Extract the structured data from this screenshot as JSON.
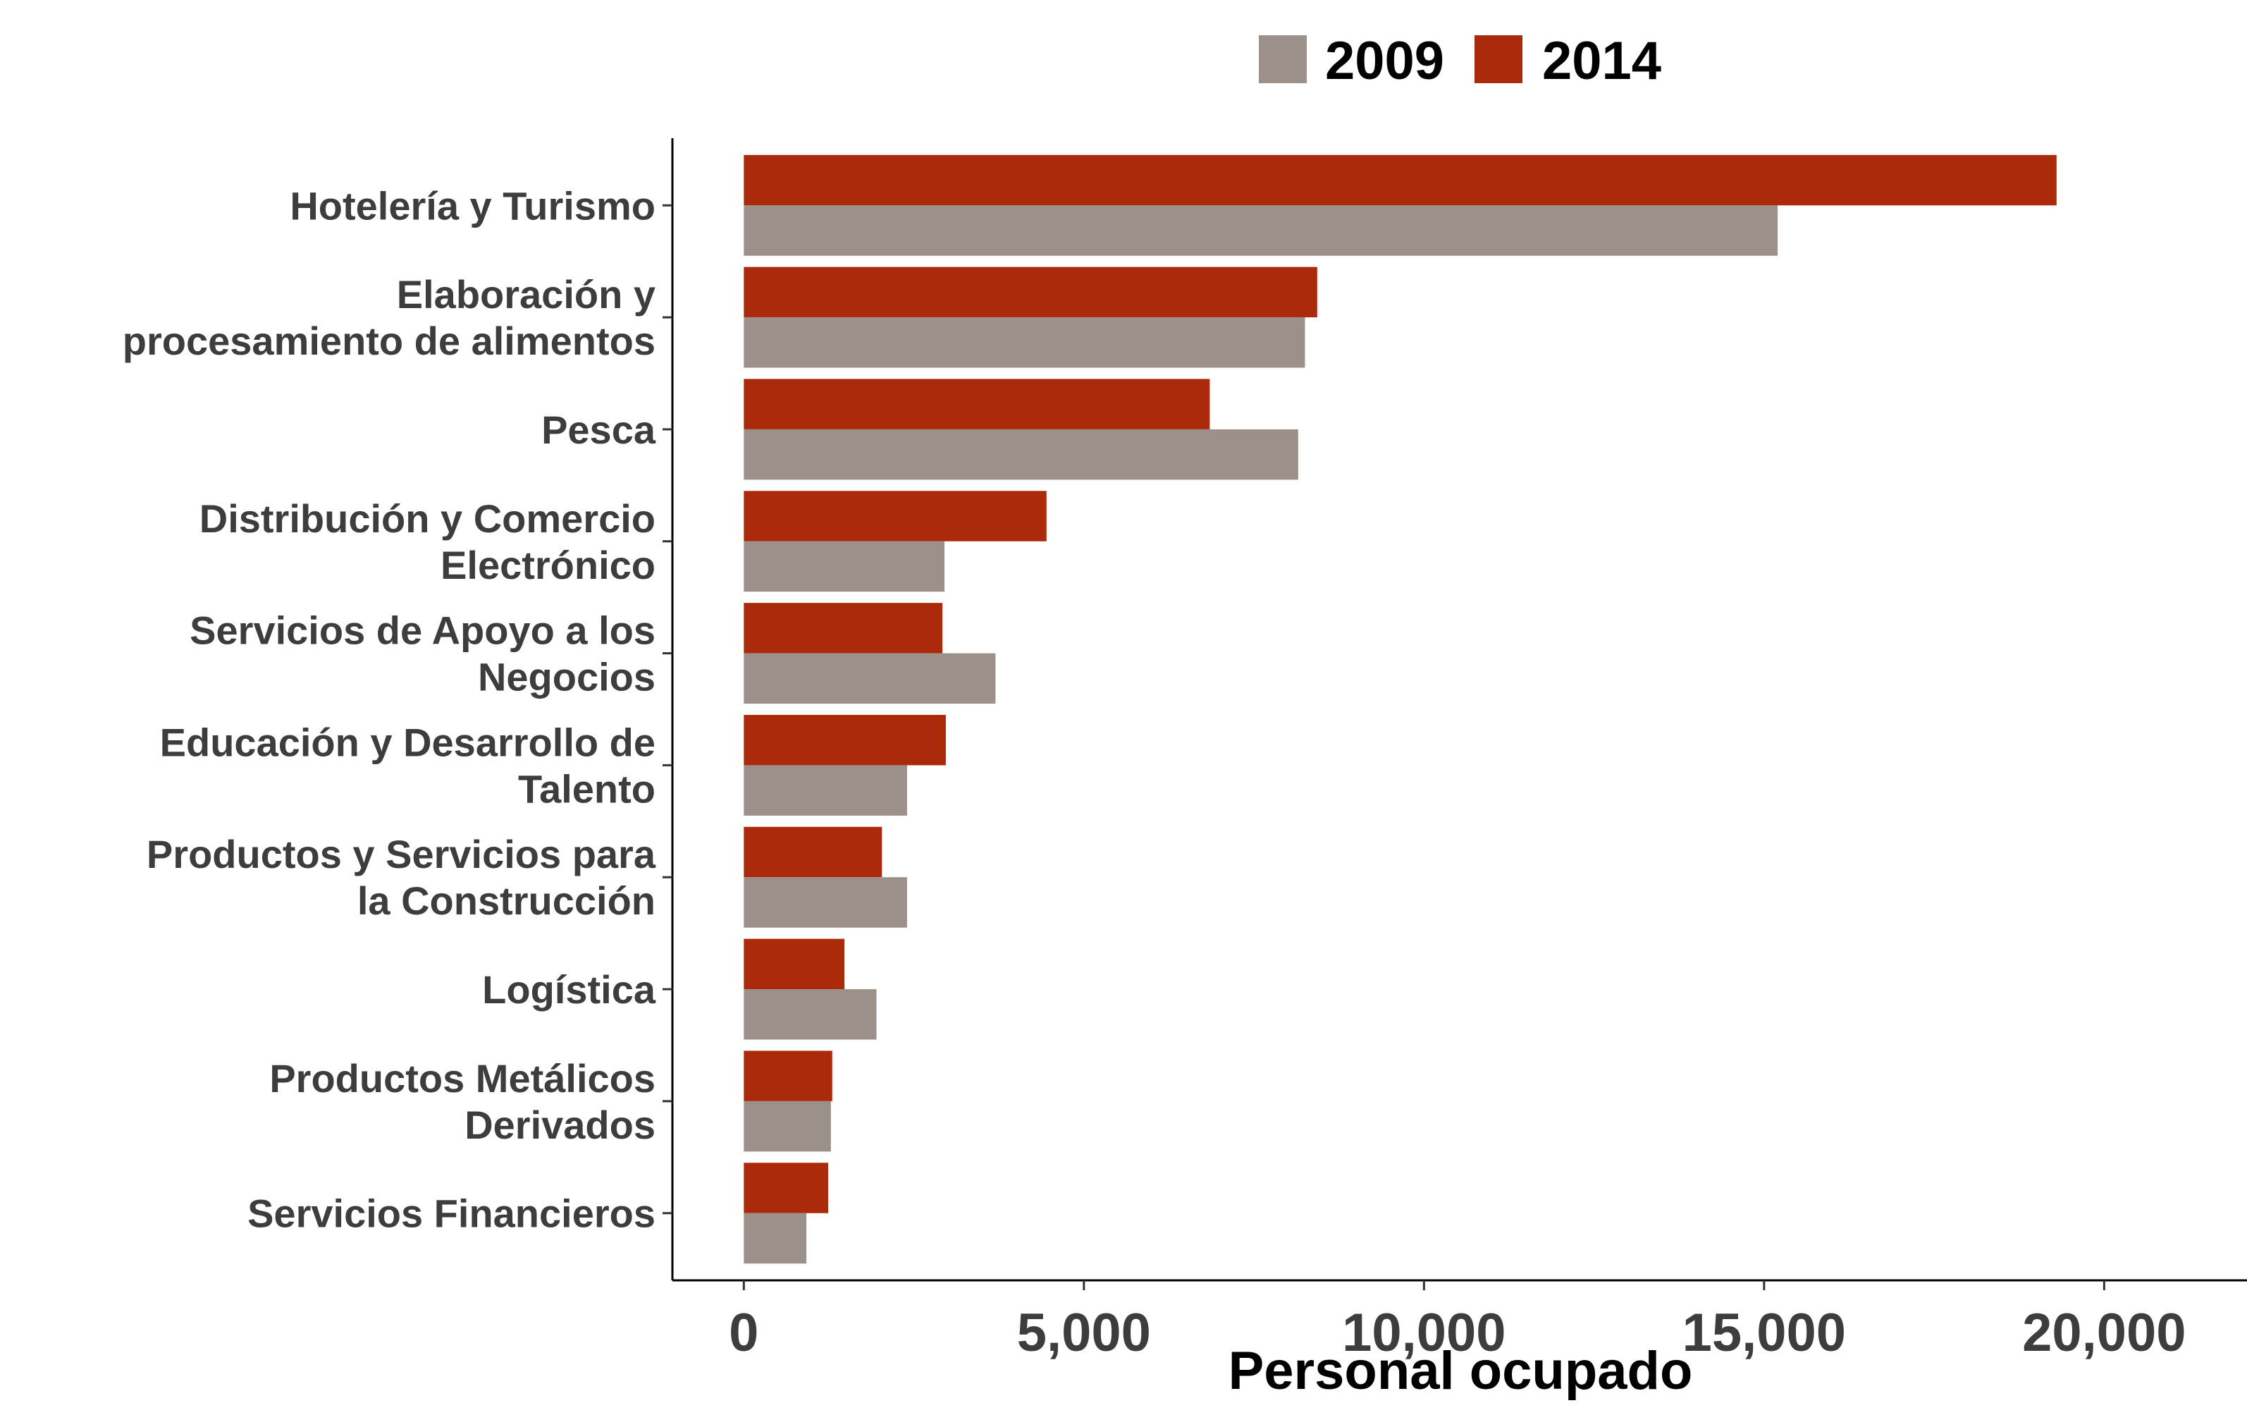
{
  "chart_data": {
    "type": "bar",
    "orientation": "horizontal",
    "title": "",
    "xlabel": "Personal ocupado",
    "ylabel": "",
    "xlim": [
      -1050,
      22100
    ],
    "x_ticks": [
      0,
      5000,
      10000,
      15000,
      20000
    ],
    "x_tick_labels": [
      "0",
      "5,000",
      "10,000",
      "15,000",
      "20,000"
    ],
    "grid": false,
    "legend_position": "top",
    "categories": [
      [
        "Hotelería y Turismo"
      ],
      [
        "Elaboración y",
        "procesamiento de alimentos"
      ],
      [
        "Pesca"
      ],
      [
        "Distribución y Comercio",
        "Electrónico"
      ],
      [
        "Servicios de Apoyo a los",
        "Negocios"
      ],
      [
        "Educación y Desarrollo de",
        "Talento"
      ],
      [
        "Productos y Servicios para",
        "la Construcción"
      ],
      [
        "Logística"
      ],
      [
        "Productos Metálicos",
        "Derivados"
      ],
      [
        "Servicios Financieros"
      ]
    ],
    "series": [
      {
        "name": "2009",
        "color": "#9b908a",
        "values": [
          15200,
          8250,
          8150,
          2950,
          3700,
          2400,
          2400,
          1950,
          1280,
          920
        ]
      },
      {
        "name": "2014",
        "color": "#ab2a0c",
        "values": [
          19300,
          8430,
          6850,
          4450,
          2920,
          2970,
          2030,
          1480,
          1300,
          1240
        ]
      }
    ]
  }
}
